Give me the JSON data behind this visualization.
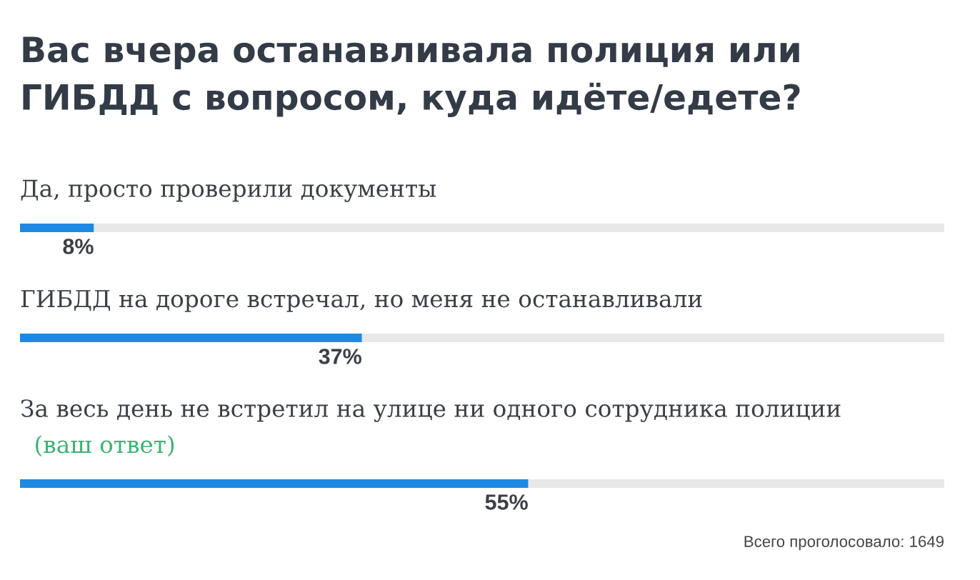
{
  "chart_data": {
    "type": "bar",
    "orientation": "horizontal",
    "stacked": true,
    "title": "Вас вчера останавливала полиция или\nГИБДД с вопросом, куда идёте/едете?",
    "categories": [
      "Да, просто проверили документы",
      "ГИБДД на дороге встречал, но меня не останавливали",
      "За весь день не встретил на улице ни одного сотрудника полиции"
    ],
    "series": [
      {
        "color": "#1e88e5",
        "values": [
          8,
          37,
          55
        ],
        "value_labels": [
          "8%",
          "37%",
          "55%"
        ]
      },
      {
        "color": "#e8e8e8",
        "values": [
          92,
          63,
          45
        ]
      }
    ],
    "xlim": [
      0,
      100
    ],
    "tick_labels": "y",
    "annotations": [
      "(ваш ответ)",
      "Всего проголосовало: 1649"
    ]
  }
}
